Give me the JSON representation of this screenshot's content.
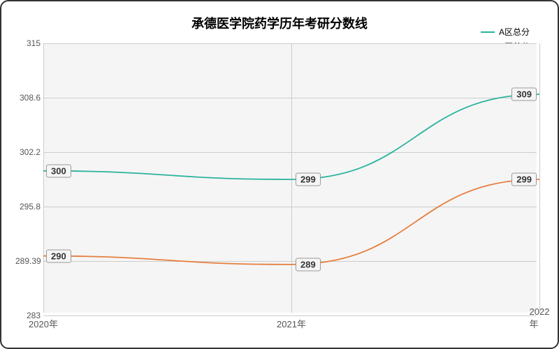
{
  "title": "承德医学院药学历年考研分数线",
  "background_color": "#ffffff",
  "plot_background": "#f5f5f5",
  "border_color": "#333333",
  "grid_color": "#cccccc",
  "title_fontsize": 18,
  "label_fontsize": 12,
  "x_axis": {
    "categories": [
      "2020年",
      "2021年",
      "2022年"
    ]
  },
  "y_axis": {
    "ticks": [
      283,
      289.39,
      295.8,
      302.2,
      308.6,
      315
    ],
    "min": 283,
    "max": 315
  },
  "series": [
    {
      "name": "A区总分",
      "color": "#2ab39b",
      "values": [
        300,
        299,
        309
      ],
      "labels": [
        "300",
        "299",
        "309"
      ]
    },
    {
      "name": "B区总分",
      "color": "#e67e3e",
      "values": [
        290,
        289,
        299
      ],
      "labels": [
        "290",
        "289",
        "299"
      ]
    }
  ],
  "legend": {
    "items": [
      "A区总分",
      "B区总分"
    ]
  }
}
